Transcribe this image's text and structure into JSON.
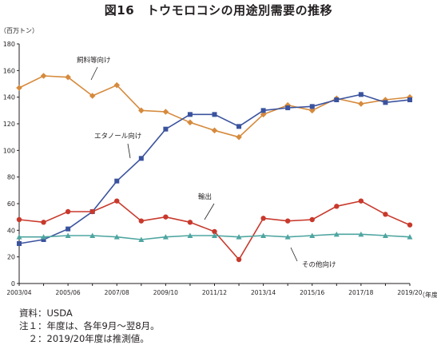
{
  "chart_data": {
    "type": "line",
    "title": "図16　トウモロコシの用途別需要の推移",
    "ylabel": "（百万トン）",
    "xlabel": "（年度）",
    "ylim": [
      0,
      180
    ],
    "yticks": [
      0,
      20,
      40,
      60,
      80,
      100,
      120,
      140,
      160,
      180
    ],
    "grid": false,
    "x": [
      "2003/04",
      "2004/05",
      "2005/06",
      "2006/07",
      "2007/08",
      "2008/09",
      "2009/10",
      "2010/11",
      "2011/12",
      "2012/13",
      "2013/14",
      "2014/15",
      "2015/16",
      "2016/17",
      "2017/18",
      "2018/19",
      "2019/20"
    ],
    "xtick_labels": [
      "2003/04",
      "2005/06",
      "2007/08",
      "2009/10",
      "2011/12",
      "2013/14",
      "2015/16",
      "2017/18",
      "2019/20"
    ],
    "series": [
      {
        "name": "飼料等向け",
        "color": "#d68a3c",
        "marker": "diamond",
        "values": [
          147,
          156,
          155,
          141,
          149,
          130,
          129,
          121,
          115,
          110,
          127,
          134,
          130,
          139,
          135,
          138,
          140
        ]
      },
      {
        "name": "エタノール向け",
        "color": "#3b539e",
        "marker": "square",
        "values": [
          30,
          33,
          41,
          54,
          77,
          94,
          116,
          127,
          127,
          118,
          130,
          132,
          133,
          138,
          142,
          136,
          138
        ]
      },
      {
        "name": "輸出",
        "color": "#c8392c",
        "marker": "circle",
        "values": [
          48,
          46,
          54,
          54,
          62,
          47,
          50,
          46,
          39,
          18,
          49,
          47,
          48,
          58,
          62,
          52,
          44
        ]
      },
      {
        "name": "その他向け",
        "color": "#4ea5a0",
        "marker": "triangle",
        "values": [
          35,
          35,
          36,
          36,
          35,
          33,
          35,
          36,
          36,
          35,
          36,
          35,
          36,
          37,
          37,
          36,
          35
        ]
      }
    ]
  },
  "notes": [
    "資料：USDA",
    "注１：年度は、各年9月～翌8月。",
    "　２：2019/20年度は推測値。"
  ]
}
